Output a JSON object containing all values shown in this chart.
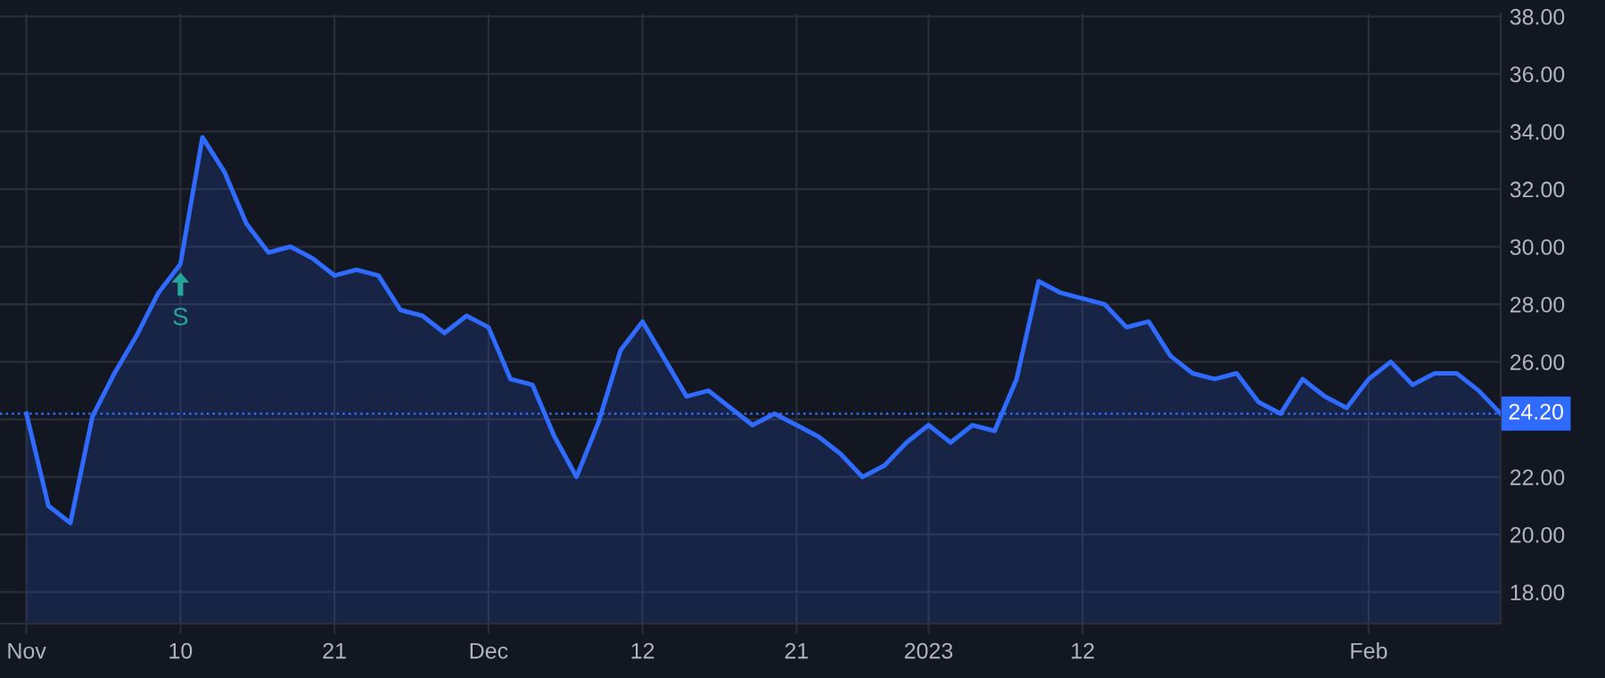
{
  "chart_data": {
    "type": "area",
    "categories": [
      "Nov",
      null,
      null,
      null,
      null,
      null,
      null,
      "10",
      null,
      null,
      null,
      null,
      null,
      null,
      "21",
      null,
      null,
      null,
      null,
      null,
      null,
      "Dec",
      null,
      null,
      null,
      null,
      null,
      null,
      "12",
      null,
      null,
      null,
      null,
      null,
      null,
      "21",
      null,
      null,
      null,
      null,
      null,
      "2023",
      null,
      null,
      null,
      null,
      null,
      null,
      "12",
      null,
      null,
      null,
      null,
      null,
      null,
      null,
      null,
      null,
      null,
      null,
      null,
      "Feb",
      null,
      null,
      null,
      null,
      null,
      null
    ],
    "series": [
      {
        "color": "#2f6bff",
        "values": [
          24.2,
          21.0,
          20.4,
          24.1,
          25.6,
          26.9,
          28.4,
          29.4,
          33.8,
          32.6,
          30.8,
          29.8,
          30.0,
          29.6,
          29.0,
          29.2,
          29.0,
          27.8,
          27.6,
          27.0,
          27.6,
          27.2,
          25.4,
          25.2,
          23.4,
          22.0,
          23.9,
          26.4,
          27.4,
          26.1,
          24.8,
          25.0,
          24.4,
          23.8,
          24.2,
          23.8,
          23.4,
          22.8,
          22.0,
          22.4,
          23.2,
          23.8,
          23.2,
          23.8,
          23.6,
          25.4,
          28.8,
          28.4,
          28.2,
          28.0,
          27.2,
          27.4,
          26.2,
          25.6,
          25.4,
          25.6,
          24.6,
          24.2,
          25.4,
          24.8,
          24.4,
          25.4,
          26.0,
          25.2,
          25.6,
          25.6,
          25.0,
          24.2
        ]
      }
    ],
    "ylim": [
      16.9,
      38.1
    ],
    "yticks": [
      {
        "value": 18,
        "label": "18.00"
      },
      {
        "value": 20,
        "label": "20.00"
      },
      {
        "value": 22,
        "label": "22.00"
      },
      {
        "value": 24,
        "label": null
      },
      {
        "value": 26,
        "label": "26.00"
      },
      {
        "value": 28,
        "label": "28.00"
      },
      {
        "value": 30,
        "label": "30.00"
      },
      {
        "value": 32,
        "label": "32.00"
      },
      {
        "value": 34,
        "label": "34.00"
      },
      {
        "value": 36,
        "label": "36.00"
      },
      {
        "value": 38,
        "label": "38.00"
      }
    ],
    "ref_lines": [
      {
        "axis": "y",
        "value": 24.2,
        "label": "24.20",
        "color": "#2f6bff",
        "line_style": "dotted"
      }
    ],
    "annotations": [
      {
        "text": "S",
        "y": 29.4
      }
    ],
    "grid": true,
    "line_style": "solid"
  }
}
